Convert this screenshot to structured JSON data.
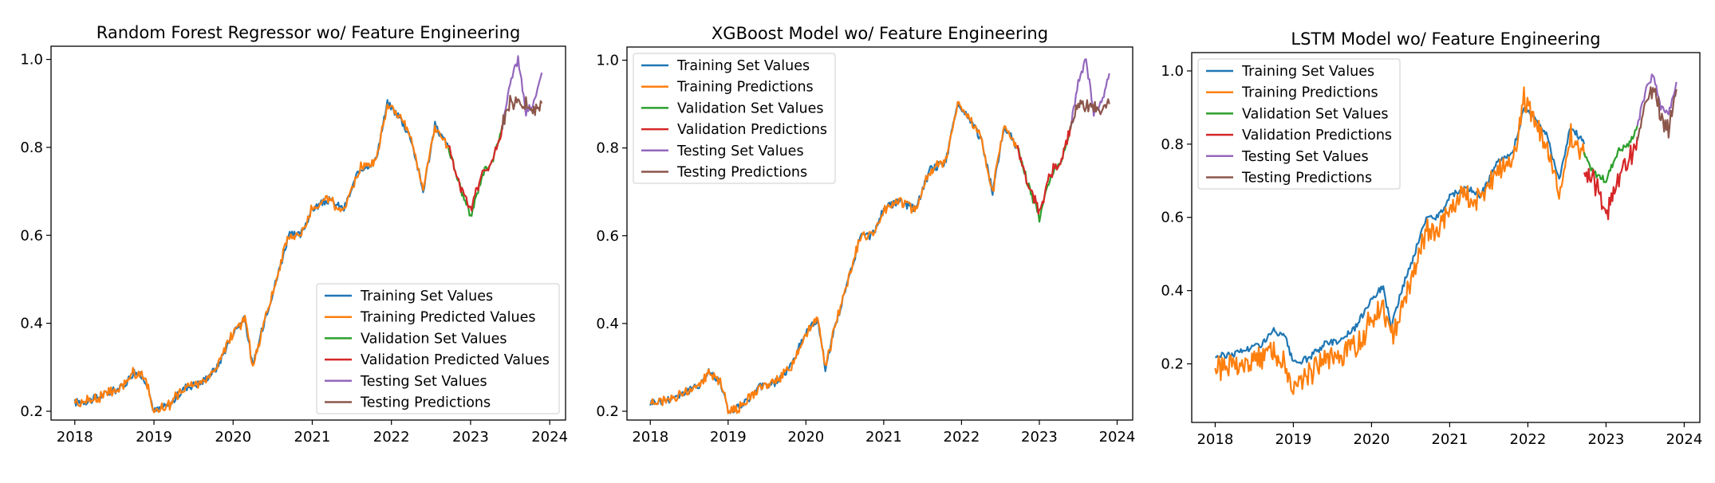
{
  "figure": {
    "background": "#ffffff"
  },
  "chart_data": [
    {
      "type": "line",
      "title": "Random Forest Regressor wo/ Feature Engineering",
      "xlabel": "",
      "ylabel": "",
      "xlim": [
        2017.7,
        2024.2
      ],
      "ylim": [
        0.18,
        1.03
      ],
      "xticks": [
        2018,
        2019,
        2020,
        2021,
        2022,
        2023,
        2024
      ],
      "xtick_labels": [
        "2018",
        "2019",
        "2020",
        "2021",
        "2022",
        "2023",
        "2024"
      ],
      "yticks": [
        0.2,
        0.4,
        0.6,
        0.8,
        1.0
      ],
      "ytick_labels": [
        "0.2",
        "0.4",
        "0.6",
        "0.8",
        "1.0"
      ],
      "legend_position": "lower right",
      "series": [
        {
          "name": "Training Set Values",
          "color": "#1f77b4",
          "noise": 0.0,
          "x": [
            2018.0,
            2018.2,
            2018.4,
            2018.6,
            2018.75,
            2018.9,
            2019.0,
            2019.2,
            2019.4,
            2019.6,
            2019.8,
            2020.0,
            2020.15,
            2020.25,
            2020.4,
            2020.55,
            2020.7,
            2020.85,
            2021.0,
            2021.2,
            2021.4,
            2021.6,
            2021.8,
            2021.95,
            2022.1,
            2022.25,
            2022.4,
            2022.55,
            2022.72
          ],
          "y": [
            0.22,
            0.225,
            0.24,
            0.255,
            0.29,
            0.27,
            0.2,
            0.215,
            0.255,
            0.265,
            0.3,
            0.38,
            0.41,
            0.3,
            0.41,
            0.5,
            0.6,
            0.6,
            0.66,
            0.68,
            0.66,
            0.75,
            0.77,
            0.9,
            0.87,
            0.82,
            0.7,
            0.85,
            0.8
          ]
        },
        {
          "name": "Training Predicted Values",
          "color": "#ff7f0e",
          "noise": 0.006,
          "x": [
            2018.0,
            2018.2,
            2018.4,
            2018.6,
            2018.75,
            2018.9,
            2019.0,
            2019.2,
            2019.4,
            2019.6,
            2019.8,
            2020.0,
            2020.15,
            2020.25,
            2020.4,
            2020.55,
            2020.7,
            2020.85,
            2021.0,
            2021.2,
            2021.4,
            2021.6,
            2021.8,
            2021.95,
            2022.1,
            2022.25,
            2022.4,
            2022.55,
            2022.72
          ],
          "y": [
            0.22,
            0.225,
            0.24,
            0.255,
            0.29,
            0.27,
            0.2,
            0.215,
            0.255,
            0.265,
            0.3,
            0.38,
            0.41,
            0.3,
            0.41,
            0.5,
            0.6,
            0.6,
            0.66,
            0.68,
            0.66,
            0.75,
            0.77,
            0.9,
            0.87,
            0.82,
            0.7,
            0.85,
            0.8
          ]
        },
        {
          "name": "Validation Set Values",
          "color": "#2ca02c",
          "noise": 0.0,
          "x": [
            2022.72,
            2022.85,
            2023.0,
            2023.15,
            2023.3,
            2023.4
          ],
          "y": [
            0.8,
            0.72,
            0.64,
            0.74,
            0.78,
            0.85
          ]
        },
        {
          "name": "Validation Predicted Values",
          "color": "#d62728",
          "noise": 0.008,
          "x": [
            2022.72,
            2022.85,
            2023.0,
            2023.15,
            2023.3,
            2023.4
          ],
          "y": [
            0.8,
            0.72,
            0.66,
            0.74,
            0.78,
            0.85
          ]
        },
        {
          "name": "Testing Set Values",
          "color": "#9467bd",
          "noise": 0.0,
          "x": [
            2023.4,
            2023.5,
            2023.6,
            2023.7,
            2023.8,
            2023.9
          ],
          "y": [
            0.85,
            0.95,
            1.0,
            0.88,
            0.9,
            0.97
          ]
        },
        {
          "name": "Testing Predictions",
          "color": "#8c564b",
          "noise": 0.01,
          "x": [
            2023.4,
            2023.5,
            2023.6,
            2023.7,
            2023.8,
            2023.9
          ],
          "y": [
            0.85,
            0.9,
            0.9,
            0.9,
            0.88,
            0.9
          ]
        }
      ]
    },
    {
      "type": "line",
      "title": "XGBoost Model wo/ Feature Engineering",
      "xlabel": "",
      "ylabel": "",
      "xlim": [
        2017.7,
        2024.2
      ],
      "ylim": [
        0.18,
        1.03
      ],
      "xticks": [
        2018,
        2019,
        2020,
        2021,
        2022,
        2023,
        2024
      ],
      "xtick_labels": [
        "2018",
        "2019",
        "2020",
        "2021",
        "2022",
        "2023",
        "2024"
      ],
      "yticks": [
        0.2,
        0.4,
        0.6,
        0.8,
        1.0
      ],
      "ytick_labels": [
        "0.2",
        "0.4",
        "0.6",
        "0.8",
        "1.0"
      ],
      "legend_position": "upper left",
      "series": [
        {
          "name": "Training Set Values",
          "color": "#1f77b4",
          "noise": 0.0,
          "x": [
            2018.0,
            2018.2,
            2018.4,
            2018.6,
            2018.75,
            2018.9,
            2019.0,
            2019.2,
            2019.4,
            2019.6,
            2019.8,
            2020.0,
            2020.15,
            2020.25,
            2020.4,
            2020.55,
            2020.7,
            2020.85,
            2021.0,
            2021.2,
            2021.4,
            2021.6,
            2021.8,
            2021.95,
            2022.1,
            2022.25,
            2022.4,
            2022.55,
            2022.72
          ],
          "y": [
            0.22,
            0.225,
            0.24,
            0.255,
            0.29,
            0.27,
            0.2,
            0.215,
            0.255,
            0.265,
            0.3,
            0.38,
            0.41,
            0.3,
            0.41,
            0.5,
            0.6,
            0.6,
            0.66,
            0.68,
            0.66,
            0.75,
            0.77,
            0.9,
            0.87,
            0.82,
            0.7,
            0.85,
            0.8
          ]
        },
        {
          "name": "Training Predictions",
          "color": "#ff7f0e",
          "noise": 0.005,
          "x": [
            2018.0,
            2018.2,
            2018.4,
            2018.6,
            2018.75,
            2018.9,
            2019.0,
            2019.2,
            2019.4,
            2019.6,
            2019.8,
            2020.0,
            2020.15,
            2020.25,
            2020.4,
            2020.55,
            2020.7,
            2020.85,
            2021.0,
            2021.2,
            2021.4,
            2021.6,
            2021.8,
            2021.95,
            2022.1,
            2022.25,
            2022.4,
            2022.55,
            2022.72
          ],
          "y": [
            0.22,
            0.225,
            0.24,
            0.255,
            0.29,
            0.27,
            0.2,
            0.215,
            0.255,
            0.265,
            0.3,
            0.38,
            0.41,
            0.3,
            0.41,
            0.5,
            0.6,
            0.6,
            0.66,
            0.68,
            0.66,
            0.75,
            0.77,
            0.9,
            0.87,
            0.82,
            0.7,
            0.85,
            0.8
          ]
        },
        {
          "name": "Validation Set Values",
          "color": "#2ca02c",
          "noise": 0.0,
          "x": [
            2022.72,
            2022.85,
            2023.0,
            2023.15,
            2023.3,
            2023.4
          ],
          "y": [
            0.8,
            0.72,
            0.64,
            0.74,
            0.78,
            0.85
          ]
        },
        {
          "name": "Validation Predictions",
          "color": "#d62728",
          "noise": 0.008,
          "x": [
            2022.72,
            2022.85,
            2023.0,
            2023.15,
            2023.3,
            2023.4
          ],
          "y": [
            0.8,
            0.72,
            0.66,
            0.74,
            0.78,
            0.85
          ]
        },
        {
          "name": "Testing Set Values",
          "color": "#9467bd",
          "noise": 0.0,
          "x": [
            2023.4,
            2023.5,
            2023.6,
            2023.7,
            2023.8,
            2023.9
          ],
          "y": [
            0.85,
            0.95,
            1.0,
            0.88,
            0.9,
            0.97
          ]
        },
        {
          "name": "Testing Predictions",
          "color": "#8c564b",
          "noise": 0.01,
          "x": [
            2023.4,
            2023.5,
            2023.6,
            2023.7,
            2023.8,
            2023.9
          ],
          "y": [
            0.85,
            0.9,
            0.9,
            0.9,
            0.88,
            0.9
          ]
        }
      ]
    },
    {
      "type": "line",
      "title": "LSTM Model wo/ Feature Engineering",
      "xlabel": "",
      "ylabel": "",
      "xlim": [
        2017.7,
        2024.2
      ],
      "ylim": [
        0.04,
        1.05
      ],
      "xticks": [
        2018,
        2019,
        2020,
        2021,
        2022,
        2023,
        2024
      ],
      "xtick_labels": [
        "2018",
        "2019",
        "2020",
        "2021",
        "2022",
        "2023",
        "2024"
      ],
      "yticks": [
        0.2,
        0.4,
        0.6,
        0.8,
        1.0
      ],
      "ytick_labels": [
        "0.2",
        "0.4",
        "0.6",
        "0.8",
        "1.0"
      ],
      "legend_position": "upper left",
      "series": [
        {
          "name": "Training Set Values",
          "color": "#1f77b4",
          "noise": 0.0,
          "x": [
            2018.0,
            2018.2,
            2018.4,
            2018.6,
            2018.75,
            2018.9,
            2019.0,
            2019.2,
            2019.4,
            2019.6,
            2019.8,
            2020.0,
            2020.15,
            2020.25,
            2020.4,
            2020.55,
            2020.7,
            2020.85,
            2021.0,
            2021.2,
            2021.4,
            2021.6,
            2021.8,
            2021.95,
            2022.1,
            2022.25,
            2022.4,
            2022.55,
            2022.72
          ],
          "y": [
            0.22,
            0.225,
            0.24,
            0.255,
            0.29,
            0.27,
            0.2,
            0.215,
            0.255,
            0.265,
            0.3,
            0.38,
            0.41,
            0.3,
            0.41,
            0.5,
            0.6,
            0.6,
            0.66,
            0.68,
            0.66,
            0.75,
            0.77,
            0.9,
            0.87,
            0.82,
            0.7,
            0.85,
            0.8
          ]
        },
        {
          "name": "Training Predictions",
          "color": "#ff7f0e",
          "noise": 0.03,
          "x": [
            2018.0,
            2018.2,
            2018.4,
            2018.6,
            2018.75,
            2018.9,
            2019.0,
            2019.2,
            2019.4,
            2019.6,
            2019.8,
            2020.0,
            2020.15,
            2020.25,
            2020.4,
            2020.55,
            2020.7,
            2020.85,
            2021.0,
            2021.2,
            2021.4,
            2021.6,
            2021.8,
            2021.95,
            2022.1,
            2022.25,
            2022.4,
            2022.55,
            2022.72
          ],
          "y": [
            0.18,
            0.2,
            0.2,
            0.22,
            0.24,
            0.2,
            0.13,
            0.17,
            0.21,
            0.22,
            0.25,
            0.32,
            0.36,
            0.27,
            0.36,
            0.45,
            0.56,
            0.56,
            0.63,
            0.66,
            0.64,
            0.73,
            0.75,
            0.92,
            0.85,
            0.79,
            0.67,
            0.82,
            0.77
          ]
        },
        {
          "name": "Validation Set Values",
          "color": "#2ca02c",
          "noise": 0.0,
          "x": [
            2022.72,
            2022.85,
            2023.0,
            2023.15,
            2023.3,
            2023.4
          ],
          "y": [
            0.77,
            0.72,
            0.7,
            0.78,
            0.8,
            0.85
          ]
        },
        {
          "name": "Validation Predictions",
          "color": "#d62728",
          "noise": 0.03,
          "x": [
            2022.72,
            2022.85,
            2023.0,
            2023.15,
            2023.3,
            2023.4
          ],
          "y": [
            0.74,
            0.7,
            0.6,
            0.7,
            0.76,
            0.82
          ]
        },
        {
          "name": "Testing Set Values",
          "color": "#9467bd",
          "noise": 0.0,
          "x": [
            2023.4,
            2023.5,
            2023.6,
            2023.7,
            2023.8,
            2023.9
          ],
          "y": [
            0.85,
            0.94,
            0.99,
            0.9,
            0.88,
            0.97
          ]
        },
        {
          "name": "Testing Predictions",
          "color": "#8c564b",
          "noise": 0.025,
          "x": [
            2023.4,
            2023.5,
            2023.6,
            2023.7,
            2023.8,
            2023.9
          ],
          "y": [
            0.83,
            0.9,
            0.96,
            0.88,
            0.84,
            0.95
          ]
        }
      ]
    }
  ]
}
